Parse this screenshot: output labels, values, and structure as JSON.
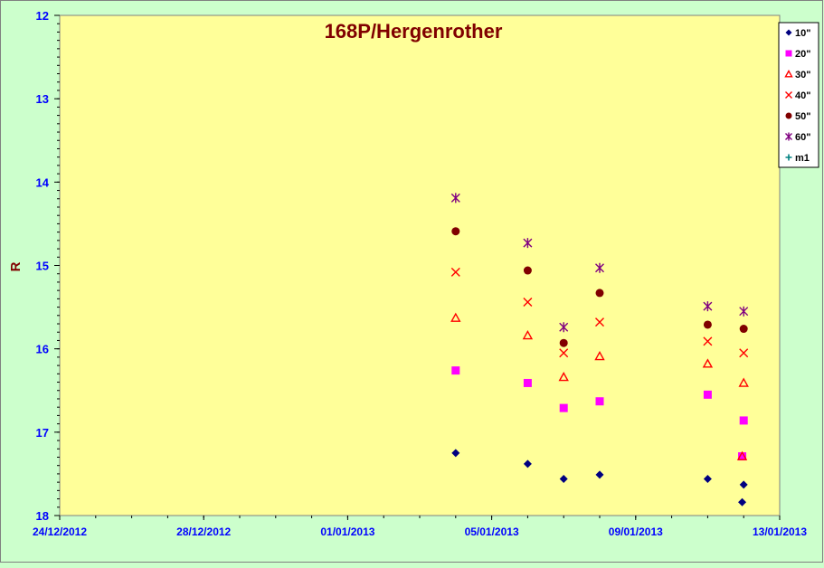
{
  "chart_data": {
    "type": "scatter",
    "title": "168P/Hergenrother",
    "xlabel": "",
    "ylabel": "R",
    "x_axis": {
      "type": "date",
      "min": "2012-12-24",
      "max": "2013-01-13",
      "ticks": [
        "24/12/2012",
        "28/12/2012",
        "01/01/2013",
        "05/01/2013",
        "09/01/2013",
        "13/01/2013"
      ]
    },
    "y_axis": {
      "inverted": true,
      "min": 12,
      "max": 18,
      "ticks": [
        "12",
        "13",
        "14",
        "15",
        "16",
        "17",
        "18"
      ]
    },
    "grid": false,
    "legend_position": "top-right",
    "series": [
      {
        "name": "10\"",
        "color": "#000080",
        "marker": "diamond",
        "points": [
          [
            "2013-01-04T00:00",
            17.25
          ],
          [
            "2013-01-06T00:00",
            17.38
          ],
          [
            "2013-01-07T00:00",
            17.56
          ],
          [
            "2013-01-08T00:00",
            17.51
          ],
          [
            "2013-01-11T00:00",
            17.56
          ],
          [
            "2013-01-12T00:00",
            17.63
          ],
          [
            "2013-01-11T23:00",
            17.84
          ]
        ]
      },
      {
        "name": "20\"",
        "color": "#ff00ff",
        "marker": "square",
        "points": [
          [
            "2013-01-04T00:00",
            16.26
          ],
          [
            "2013-01-06T00:00",
            16.41
          ],
          [
            "2013-01-07T00:00",
            16.71
          ],
          [
            "2013-01-08T00:00",
            16.63
          ],
          [
            "2013-01-11T00:00",
            16.55
          ],
          [
            "2013-01-12T00:00",
            16.86
          ],
          [
            "2013-01-11T23:00",
            17.29
          ]
        ]
      },
      {
        "name": "30\"",
        "color": "#ff0000",
        "marker": "triangle",
        "points": [
          [
            "2013-01-04T00:00",
            15.63
          ],
          [
            "2013-01-06T00:00",
            15.84
          ],
          [
            "2013-01-07T00:00",
            16.34
          ],
          [
            "2013-01-08T00:00",
            16.09
          ],
          [
            "2013-01-11T00:00",
            16.18
          ],
          [
            "2013-01-12T00:00",
            16.41
          ],
          [
            "2013-01-11T23:00",
            17.29
          ]
        ]
      },
      {
        "name": "40\"",
        "color": "#ff0000",
        "marker": "x",
        "points": [
          [
            "2013-01-04T00:00",
            15.08
          ],
          [
            "2013-01-06T00:00",
            15.44
          ],
          [
            "2013-01-07T00:00",
            16.05
          ],
          [
            "2013-01-08T00:00",
            15.68
          ],
          [
            "2013-01-11T00:00",
            15.91
          ],
          [
            "2013-01-12T00:00",
            16.05
          ]
        ]
      },
      {
        "name": "50\"",
        "color": "#800000",
        "marker": "circle",
        "points": [
          [
            "2013-01-04T00:00",
            14.59
          ],
          [
            "2013-01-06T00:00",
            15.06
          ],
          [
            "2013-01-07T00:00",
            15.93
          ],
          [
            "2013-01-08T00:00",
            15.33
          ],
          [
            "2013-01-11T00:00",
            15.71
          ],
          [
            "2013-01-12T00:00",
            15.76
          ]
        ]
      },
      {
        "name": "60\"",
        "color": "#800080",
        "marker": "star",
        "points": [
          [
            "2013-01-04T00:00",
            14.19
          ],
          [
            "2013-01-06T00:00",
            14.73
          ],
          [
            "2013-01-07T00:00",
            15.74
          ],
          [
            "2013-01-08T00:00",
            15.03
          ],
          [
            "2013-01-11T00:00",
            15.49
          ],
          [
            "2013-01-12T00:00",
            15.55
          ]
        ]
      },
      {
        "name": "m1",
        "color": "#008080",
        "marker": "plus",
        "points": []
      }
    ],
    "colors": {
      "page_background": "#ccffcc",
      "plot_background": "#ffff99",
      "axis_tick_labels": "#0000ff",
      "title": "#800000",
      "ylabel": "#800000"
    }
  }
}
